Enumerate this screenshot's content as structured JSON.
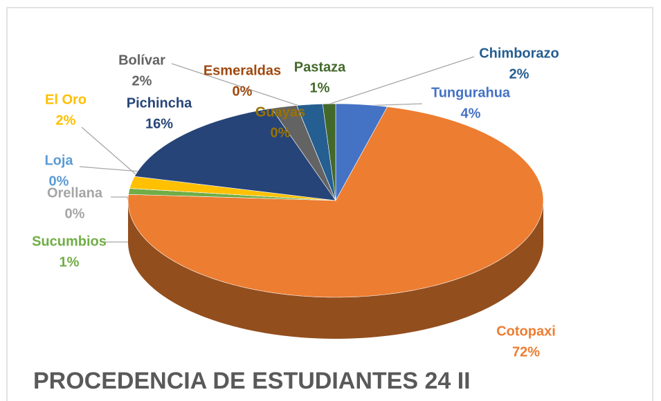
{
  "chart_data": {
    "type": "pie3d",
    "title": "PROCEDENCIA DE ESTUDIANTES 24 II",
    "categories": [
      "Tungurahua",
      "Cotopaxi",
      "Sucumbios",
      "Orellana",
      "Loja",
      "El Oro",
      "Pichincha",
      "Bolívar",
      "Esmeraldas",
      "Guayas",
      "Chimborazo",
      "Pastaza"
    ],
    "values": [
      4,
      72,
      1,
      0,
      0,
      2,
      16,
      2,
      0,
      0,
      2,
      1
    ],
    "value_labels": [
      "4%",
      "72%",
      "1%",
      "0%",
      "0%",
      "2%",
      "16%",
      "2%",
      "0%",
      "0%",
      "2%",
      "1%"
    ],
    "colors": [
      "#4472c4",
      "#ed7d31",
      "#70ad47",
      "#a5a5a5",
      "#5b9bd5",
      "#ffc000",
      "#264478",
      "#636363",
      "#9e480e",
      "#997300",
      "#255e91",
      "#43682b"
    ]
  }
}
